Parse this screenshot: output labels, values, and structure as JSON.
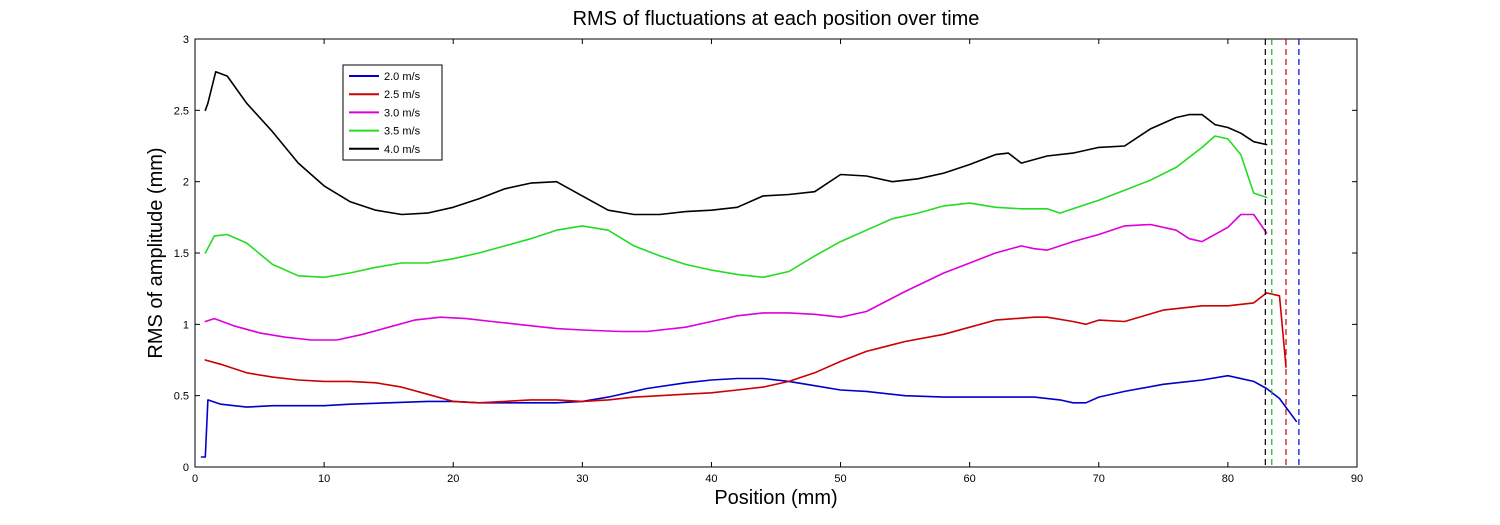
{
  "chart_data": {
    "type": "line",
    "title": "RMS of fluctuations at each position over time",
    "xlabel": "Position (mm)",
    "ylabel": "RMS of amplitude (mm)",
    "xlim": [
      0,
      90
    ],
    "ylim": [
      0,
      3
    ],
    "xticks": [
      0,
      10,
      20,
      30,
      40,
      50,
      60,
      70,
      80,
      90
    ],
    "yticks": [
      0,
      0.5,
      1,
      1.5,
      2,
      2.5,
      3
    ],
    "grid": false,
    "legend_position": "top-left",
    "series": [
      {
        "name": "2.0 m/s",
        "color": "#0000cc",
        "x": [
          0.5,
          0.8,
          1,
          2,
          4,
          6,
          8,
          10,
          12,
          15,
          18,
          20,
          22,
          25,
          28,
          30,
          32,
          35,
          38,
          40,
          42,
          44,
          46,
          48,
          50,
          52,
          55,
          58,
          60,
          62,
          65,
          67,
          68,
          69,
          70,
          72,
          75,
          78,
          80,
          82,
          83,
          84,
          85.3
        ],
        "y": [
          0.07,
          0.07,
          0.47,
          0.44,
          0.42,
          0.43,
          0.43,
          0.43,
          0.44,
          0.45,
          0.46,
          0.46,
          0.45,
          0.45,
          0.45,
          0.46,
          0.49,
          0.55,
          0.59,
          0.61,
          0.62,
          0.62,
          0.6,
          0.57,
          0.54,
          0.53,
          0.5,
          0.49,
          0.49,
          0.49,
          0.49,
          0.47,
          0.45,
          0.45,
          0.49,
          0.53,
          0.58,
          0.61,
          0.64,
          0.6,
          0.55,
          0.48,
          0.32
        ]
      },
      {
        "name": "2.5 m/s",
        "color": "#cc0000",
        "x": [
          0.8,
          2,
          4,
          6,
          8,
          10,
          12,
          14,
          16,
          18,
          20,
          22,
          24,
          26,
          28,
          30,
          32,
          34,
          36,
          38,
          40,
          42,
          44,
          46,
          48,
          50,
          52,
          55,
          58,
          60,
          62,
          65,
          66,
          68,
          69,
          70,
          72,
          75,
          78,
          80,
          82,
          83,
          84,
          84.5
        ],
        "y": [
          0.75,
          0.72,
          0.66,
          0.63,
          0.61,
          0.6,
          0.6,
          0.59,
          0.56,
          0.51,
          0.46,
          0.45,
          0.46,
          0.47,
          0.47,
          0.46,
          0.47,
          0.49,
          0.5,
          0.51,
          0.52,
          0.54,
          0.56,
          0.6,
          0.66,
          0.74,
          0.81,
          0.88,
          0.93,
          0.98,
          1.03,
          1.05,
          1.05,
          1.02,
          1.0,
          1.03,
          1.02,
          1.1,
          1.13,
          1.13,
          1.15,
          1.22,
          1.2,
          0.7
        ]
      },
      {
        "name": "3.0 m/s",
        "color": "#dd00dd",
        "x": [
          0.8,
          1.5,
          3,
          5,
          7,
          9,
          11,
          13,
          15,
          17,
          19,
          21,
          23,
          25,
          28,
          30,
          33,
          35,
          38,
          40,
          42,
          44,
          46,
          48,
          50,
          52,
          55,
          58,
          60,
          62,
          64,
          65,
          66,
          68,
          70,
          72,
          74,
          76,
          77,
          78,
          80,
          81,
          82,
          83
        ],
        "y": [
          1.02,
          1.04,
          0.99,
          0.94,
          0.91,
          0.89,
          0.89,
          0.93,
          0.98,
          1.03,
          1.05,
          1.04,
          1.02,
          1.0,
          0.97,
          0.96,
          0.95,
          0.95,
          0.98,
          1.02,
          1.06,
          1.08,
          1.08,
          1.07,
          1.05,
          1.09,
          1.23,
          1.36,
          1.43,
          1.5,
          1.55,
          1.53,
          1.52,
          1.58,
          1.63,
          1.69,
          1.7,
          1.66,
          1.6,
          1.58,
          1.68,
          1.77,
          1.77,
          1.64
        ]
      },
      {
        "name": "3.5 m/s",
        "color": "#22dd22",
        "x": [
          0.8,
          1.5,
          2.5,
          4,
          6,
          8,
          10,
          12,
          14,
          16,
          18,
          20,
          22,
          24,
          26,
          28,
          30,
          32,
          34,
          36,
          38,
          40,
          42,
          44,
          46,
          48,
          50,
          52,
          54,
          56,
          58,
          60,
          62,
          64,
          66,
          67,
          68,
          70,
          72,
          74,
          76,
          78,
          79,
          80,
          81,
          82,
          83
        ],
        "y": [
          1.5,
          1.62,
          1.63,
          1.57,
          1.42,
          1.34,
          1.33,
          1.36,
          1.4,
          1.43,
          1.43,
          1.46,
          1.5,
          1.55,
          1.6,
          1.66,
          1.69,
          1.66,
          1.55,
          1.48,
          1.42,
          1.38,
          1.35,
          1.33,
          1.37,
          1.48,
          1.58,
          1.66,
          1.74,
          1.78,
          1.83,
          1.85,
          1.82,
          1.81,
          1.81,
          1.78,
          1.81,
          1.87,
          1.94,
          2.01,
          2.1,
          2.24,
          2.32,
          2.3,
          2.19,
          1.92,
          1.89
        ]
      },
      {
        "name": "4.0 m/s",
        "color": "#000000",
        "x": [
          0.8,
          1,
          1.6,
          2.5,
          4,
          6,
          8,
          10,
          12,
          14,
          16,
          18,
          20,
          22,
          24,
          26,
          28,
          30,
          32,
          34,
          36,
          38,
          40,
          42,
          44,
          46,
          48,
          50,
          52,
          54,
          56,
          58,
          60,
          62,
          63,
          64,
          66,
          68,
          70,
          72,
          74,
          76,
          77,
          78,
          79,
          80,
          81,
          82,
          83
        ],
        "y": [
          2.5,
          2.55,
          2.77,
          2.74,
          2.55,
          2.35,
          2.13,
          1.97,
          1.86,
          1.8,
          1.77,
          1.78,
          1.82,
          1.88,
          1.95,
          1.99,
          2.0,
          1.9,
          1.8,
          1.77,
          1.77,
          1.79,
          1.8,
          1.82,
          1.9,
          1.91,
          1.93,
          2.05,
          2.04,
          2.0,
          2.02,
          2.06,
          2.12,
          2.19,
          2.2,
          2.13,
          2.18,
          2.2,
          2.24,
          2.25,
          2.37,
          2.45,
          2.47,
          2.47,
          2.4,
          2.38,
          2.34,
          2.28,
          2.26
        ]
      }
    ],
    "vertical_lines": [
      {
        "x": 82.9,
        "color": "#000000",
        "style": "dashed"
      },
      {
        "x": 83.4,
        "color": "#22aa22",
        "style": "dashed"
      },
      {
        "x": 84.5,
        "color": "#cc0000",
        "style": "dashed"
      },
      {
        "x": 85.5,
        "color": "#0000cc",
        "style": "dashed"
      }
    ]
  }
}
